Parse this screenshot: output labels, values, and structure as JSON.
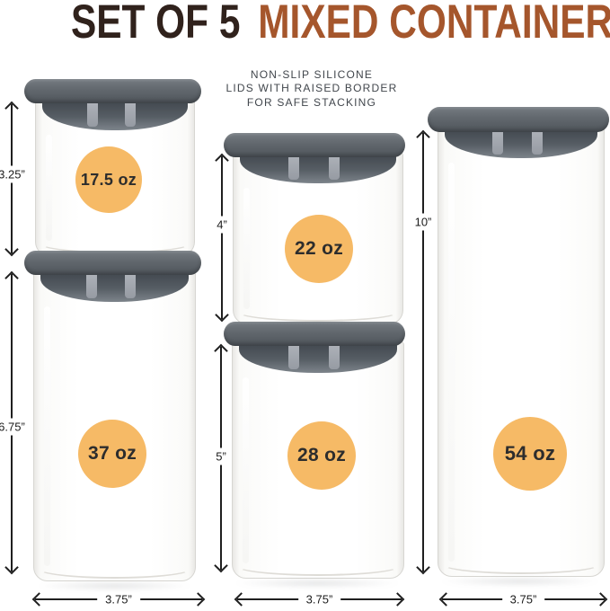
{
  "title": {
    "prefix": "SET OF 5",
    "highlight": "MIXED CONTAINERS"
  },
  "subtitle": {
    "line1": "NON-SLIP SILICONE",
    "line2": "LIDS WITH RAISED BORDER",
    "line3": "FOR SAFE STACKING"
  },
  "containers": [
    {
      "name": "container-17-5oz",
      "capacity": "17.5 oz",
      "height": "3.25”"
    },
    {
      "name": "container-37oz",
      "capacity": "37 oz",
      "height": "6.75”"
    },
    {
      "name": "container-22oz",
      "capacity": "22 oz",
      "height": "4”"
    },
    {
      "name": "container-28oz",
      "capacity": "28 oz",
      "height": "5”"
    },
    {
      "name": "container-54oz",
      "capacity": "54 oz",
      "height": "10”"
    }
  ],
  "widths": {
    "left": "3.75”",
    "middle": "3.75”",
    "right": "3.75”"
  },
  "colors": {
    "title_dark": "#30221c",
    "title_accent": "#a5562c",
    "badge": "#f6ba66",
    "lid": "#5d6369",
    "arrow": "#1f1f1f"
  }
}
